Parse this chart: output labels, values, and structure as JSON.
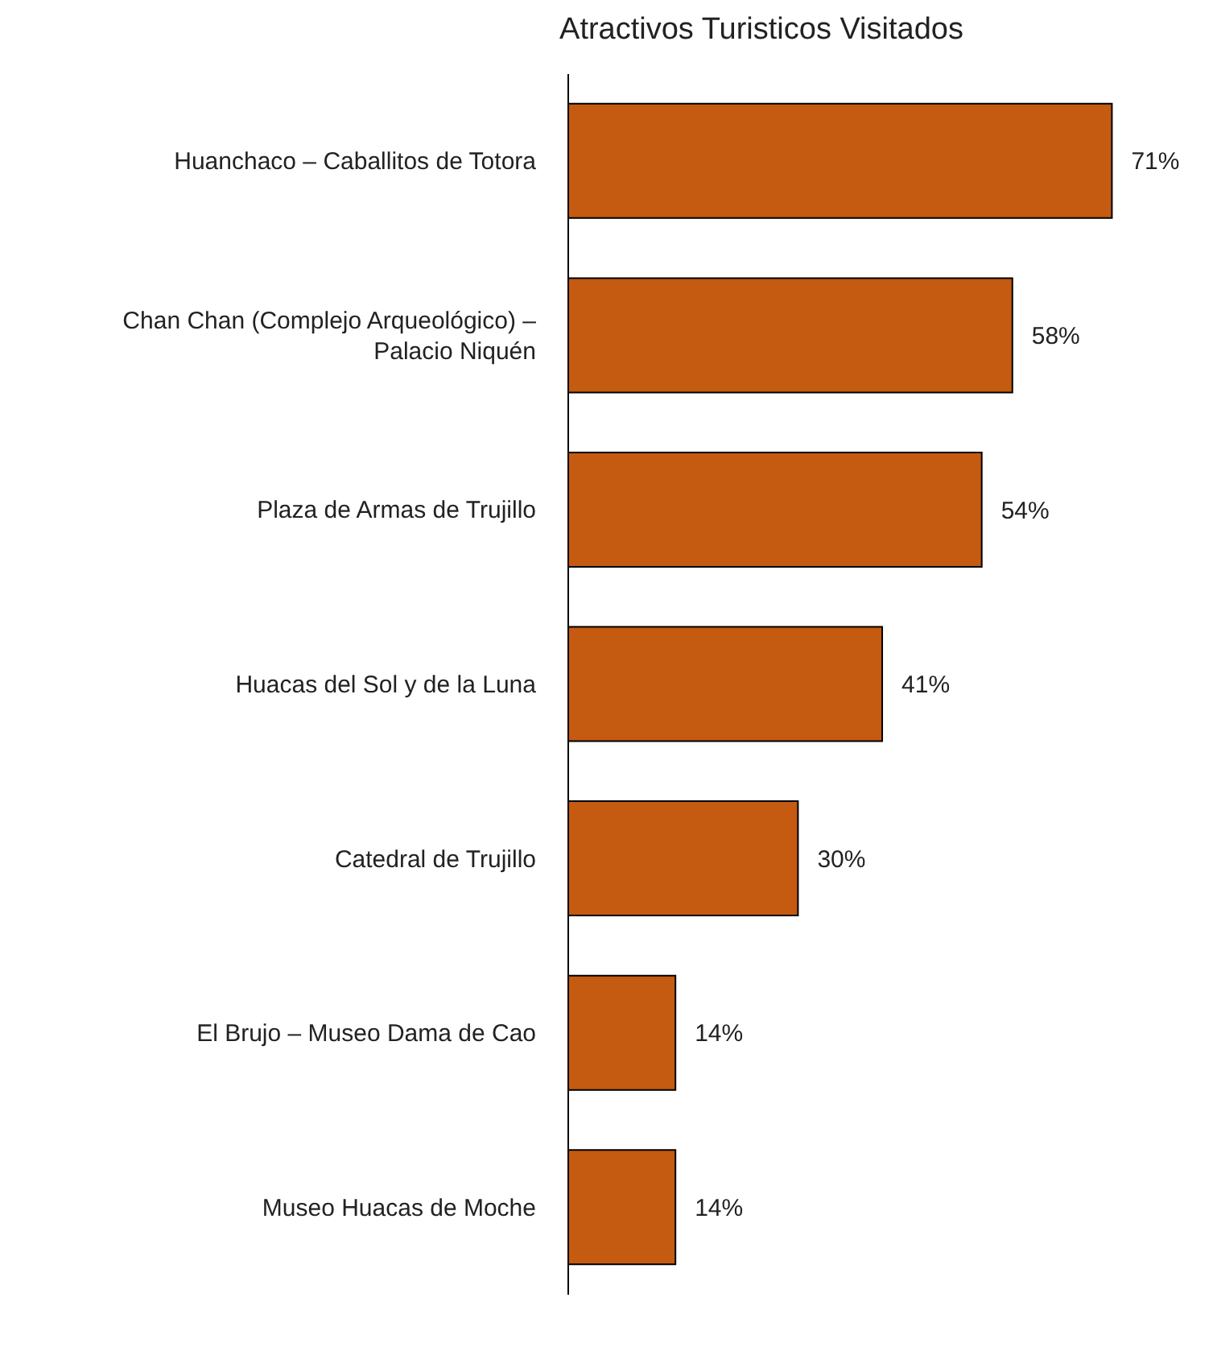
{
  "chart_data": {
    "type": "bar",
    "orientation": "horizontal",
    "title": "Atractivos Turisticos Visitados",
    "categories": [
      "Huanchaco – Caballitos de Totora",
      "Chan Chan (Complejo Arqueológico) – Palacio Niquén",
      "Plaza de Armas de Trujillo",
      "Huacas del Sol y de la Luna",
      "Catedral de Trujillo",
      "El Brujo – Museo Dama de Cao",
      "Museo Huacas de Moche"
    ],
    "values": [
      71,
      58,
      54,
      41,
      30,
      14,
      14
    ],
    "value_labels": [
      "71%",
      "58%",
      "54%",
      "41%",
      "30%",
      "14%",
      "14%"
    ],
    "color": "#c55a11",
    "tick_labels": "y"
  }
}
